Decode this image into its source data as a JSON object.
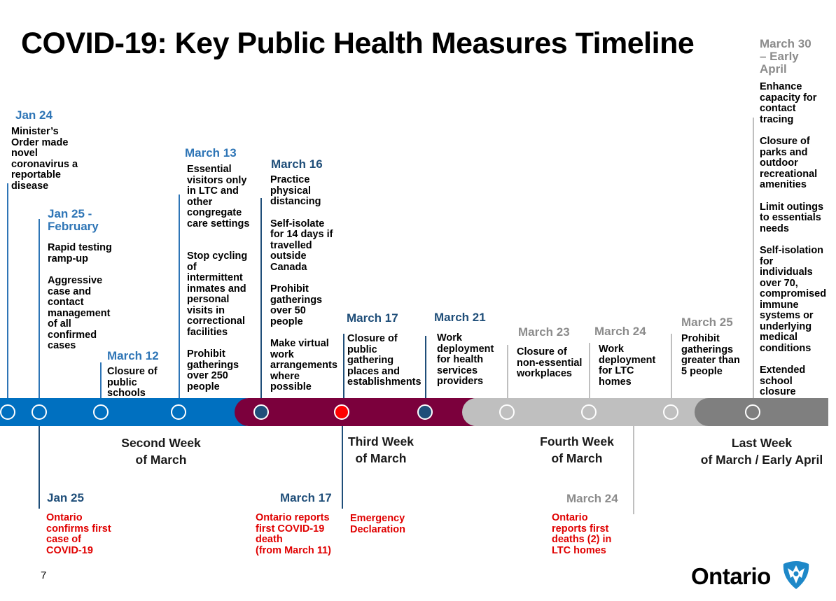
{
  "title": "COVID-19: Key Public Health Measures Timeline",
  "page_number": "7",
  "logo_text": "Ontario",
  "colors": {
    "blue": "#0070c0",
    "maroon": "#7b003c",
    "light_grey": "#bfbfbf",
    "dark_grey": "#7f7f7f",
    "red": "#e00000"
  },
  "weeks": [
    "Second Week\nof March",
    "Third Week\nof March",
    "Fourth Week\nof March",
    "Last Week\nof March / Early April"
  ],
  "top_events": [
    {
      "date": "Jan 24",
      "items": [
        "Minister’s\nOrder made\nnovel\ncoronavirus a\nreportable\ndisease"
      ]
    },
    {
      "date": "Jan 25 -\nFebruary",
      "items": [
        "Rapid testing\nramp-up",
        "Aggressive\ncase and\ncontact\nmanagement\nof all\nconfirmed\ncases"
      ]
    },
    {
      "date": "March 12",
      "items": [
        "Closure of\npublic\nschools"
      ]
    },
    {
      "date": "March 13",
      "items": [
        "Essential\nvisitors only\nin LTC and\nother\ncongregate\ncare settings",
        "Stop cycling\nof\nintermittent\ninmates and\npersonal\nvisits in\ncorrectional\nfacilities",
        "Prohibit\ngatherings\nover 250\npeople"
      ]
    },
    {
      "date": "March 16",
      "items": [
        "Practice\nphysical\ndistancing",
        "Self-isolate\nfor 14 days if\ntravelled\noutside\nCanada",
        "Prohibit\ngatherings\nover 50\npeople",
        "Make virtual\nwork\narrangements\nwhere\npossible"
      ]
    },
    {
      "date": "March 17",
      "items": [
        "Closure of\npublic\ngathering\nplaces and\nestablishments"
      ]
    },
    {
      "date": "March 21",
      "items": [
        "Work\ndeployment\nfor health\nservices\nproviders"
      ]
    },
    {
      "date": "March 23",
      "items": [
        "Closure of\nnon-essential\nworkplaces"
      ]
    },
    {
      "date": "March 24",
      "items": [
        "Work\ndeployment\nfor LTC\nhomes"
      ]
    },
    {
      "date": "March 25",
      "items": [
        "Prohibit\ngatherings\ngreater than\n5 people"
      ]
    },
    {
      "date": "March 30\n– Early\nApril",
      "items": [
        "Enhance\ncapacity for\ncontact\ntracing",
        "Closure of\nparks and\noutdoor\nrecreational\namenities",
        "Limit outings\nto essentials\nneeds",
        "Self-isolation\nfor\nindividuals\nover 70,\ncompromised\nimmune\nsystems or\nunderlying\nmedical\nconditions",
        "Extended\nschool\nclosure"
      ]
    }
  ],
  "bottom_events": [
    {
      "date": "Jan 25",
      "text": "Ontario\nconfirms first\ncase of\nCOVID-19"
    },
    {
      "date": "March 17",
      "text": "Ontario reports\nfirst COVID-19\ndeath\n(from March 11)"
    },
    {
      "date": "",
      "text": "Emergency\nDeclaration"
    },
    {
      "date": "March 24",
      "text": "Ontario\nreports first\ndeaths (2) in\nLTC homes"
    }
  ]
}
